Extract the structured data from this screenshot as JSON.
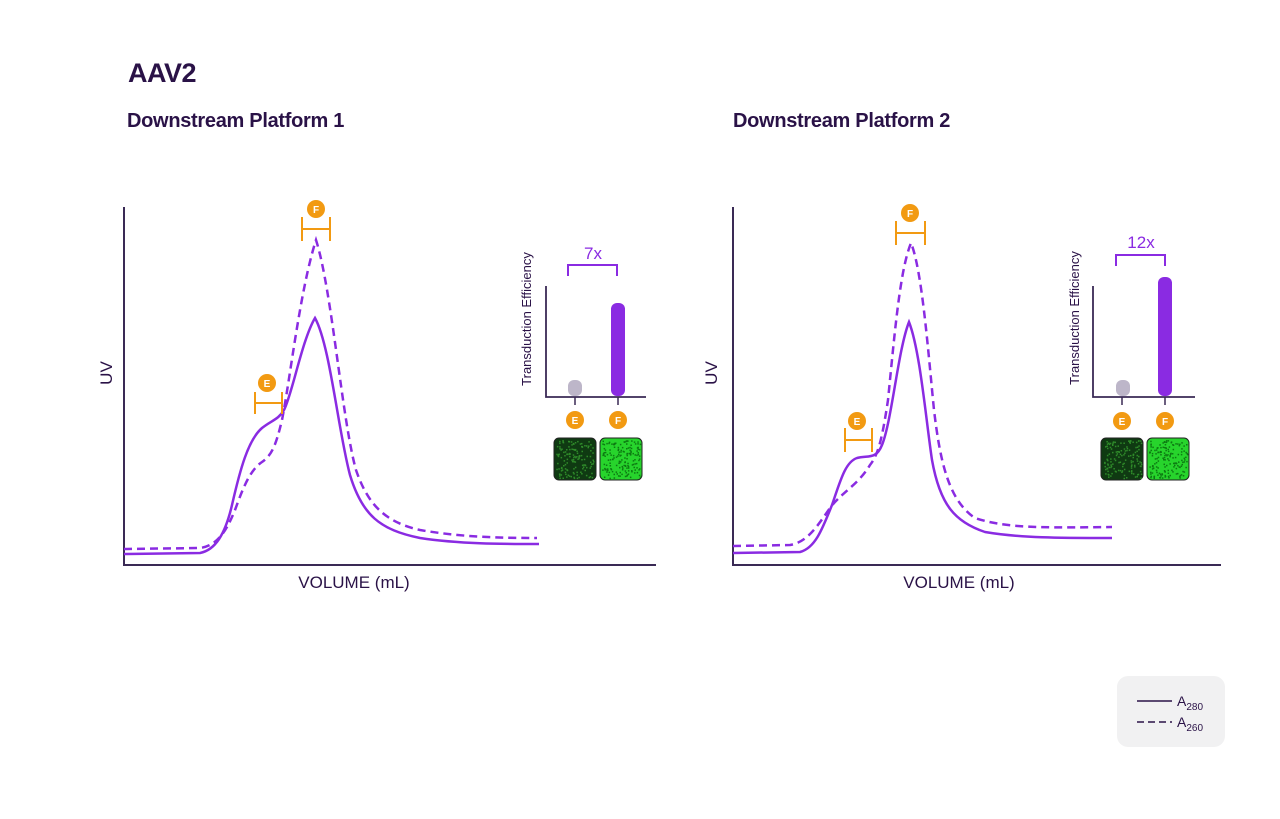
{
  "page": {
    "title": "AAV2"
  },
  "colors": {
    "purple": "#8a2be2",
    "orange": "#f29a12",
    "gray": "#bdb6c9",
    "axis": "#3a2a55",
    "text": "#2a1247",
    "green_dark": "#0f3a12",
    "green_bright": "#27d42c"
  },
  "legend": {
    "items": [
      {
        "style": "solid",
        "label": "A",
        "subscript": "280"
      },
      {
        "style": "dashed",
        "label": "A",
        "subscript": "260"
      }
    ]
  },
  "chart_data": [
    {
      "type": "line",
      "title": "Downstream Platform 1",
      "xlabel": "VOLUME (mL)",
      "ylabel": "UV",
      "x_ticks": false,
      "y_ticks": false,
      "series": [
        {
          "name": "A280",
          "style": "solid",
          "shape": "broad shoulder at E, main peak at F (lower than A260)"
        },
        {
          "name": "A260",
          "style": "dashed",
          "shape": "small shoulder at E, tall main peak at F"
        }
      ],
      "fractions": [
        {
          "label": "E",
          "region": "shoulder"
        },
        {
          "label": "F",
          "region": "main peak"
        }
      ],
      "inset": {
        "type": "bar",
        "ylabel": "Transduction Efficiency",
        "categories": [
          "E",
          "F"
        ],
        "values": [
          1,
          7
        ],
        "ratio_label": "7x"
      }
    },
    {
      "type": "line",
      "title": "Downstream Platform 2",
      "xlabel": "VOLUME (mL)",
      "ylabel": "UV",
      "x_ticks": false,
      "y_ticks": false,
      "series": [
        {
          "name": "A280",
          "style": "solid",
          "shape": "small shoulder at E, main peak at F (lower than A260)"
        },
        {
          "name": "A260",
          "style": "dashed",
          "shape": "small shoulder at E, tall main peak at F"
        }
      ],
      "fractions": [
        {
          "label": "E",
          "region": "shoulder"
        },
        {
          "label": "F",
          "region": "main peak"
        }
      ],
      "inset": {
        "type": "bar",
        "ylabel": "Transduction Efficiency",
        "categories": [
          "E",
          "F"
        ],
        "values": [
          1,
          12
        ],
        "ratio_label": "12x"
      }
    }
  ]
}
